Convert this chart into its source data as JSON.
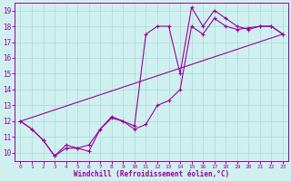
{
  "xlabel": "Windchill (Refroidissement éolien,°C)",
  "xlim": [
    -0.5,
    23.5
  ],
  "ylim": [
    9.5,
    19.5
  ],
  "xticks": [
    0,
    1,
    2,
    3,
    4,
    5,
    6,
    7,
    8,
    9,
    10,
    11,
    12,
    13,
    14,
    15,
    16,
    17,
    18,
    19,
    20,
    21,
    22,
    23
  ],
  "yticks": [
    10,
    11,
    12,
    13,
    14,
    15,
    16,
    17,
    18,
    19
  ],
  "background_color": "#d0f0f0",
  "grid_color": "#a8d8d8",
  "line_color": "#990099",
  "line1_x": [
    0,
    1,
    2,
    3,
    4,
    5,
    6,
    7,
    8,
    9,
    10,
    11,
    12,
    13,
    14,
    15,
    16,
    17,
    18,
    19,
    20,
    21,
    22,
    23
  ],
  "line1_y": [
    12.0,
    11.5,
    10.8,
    9.8,
    10.5,
    10.3,
    10.5,
    11.5,
    12.3,
    12.0,
    11.7,
    17.5,
    18.0,
    18.0,
    15.0,
    19.2,
    18.0,
    19.0,
    18.5,
    18.0,
    17.8,
    18.0,
    18.0,
    17.5
  ],
  "line2_x": [
    0,
    1,
    2,
    3,
    4,
    5,
    6,
    7,
    8,
    9,
    10,
    11,
    12,
    13,
    14,
    15,
    16,
    17,
    18,
    19,
    20,
    21,
    22,
    23
  ],
  "line2_y": [
    12.0,
    11.5,
    10.8,
    9.8,
    10.3,
    10.3,
    10.1,
    11.5,
    12.2,
    12.0,
    11.5,
    11.8,
    13.0,
    13.3,
    14.0,
    18.0,
    17.5,
    18.5,
    18.0,
    17.8,
    17.9,
    18.0,
    18.0,
    17.5
  ],
  "line3_x": [
    0,
    23
  ],
  "line3_y": [
    12.0,
    17.5
  ]
}
